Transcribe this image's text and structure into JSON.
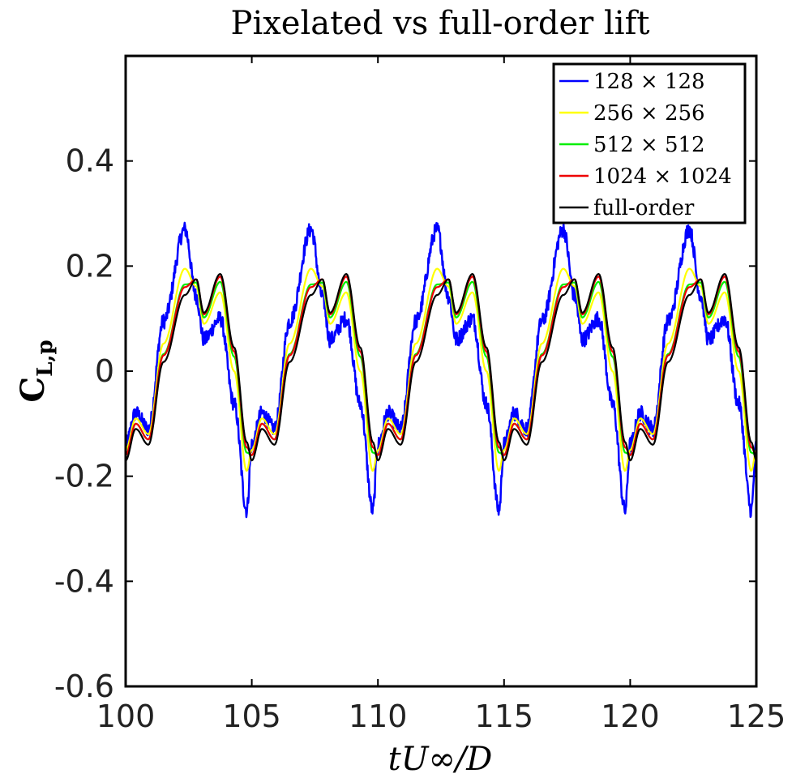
{
  "chart_data": {
    "type": "line",
    "title": "Pixelated vs full-order lift",
    "xlabel": "tU∞/D",
    "ylabel": "C",
    "ylabel_sub": "L,p",
    "xlim": [
      100,
      125
    ],
    "ylim": [
      -0.6,
      0.6
    ],
    "xticks": [
      100,
      105,
      110,
      115,
      120,
      125
    ],
    "xtick_labels": [
      "100",
      "105",
      "110",
      "115",
      "120",
      "125"
    ],
    "yticks": [
      -0.6,
      -0.4,
      -0.2,
      0,
      0.2,
      0.4
    ],
    "ytick_labels": [
      "-0.6",
      "-0.4",
      "-0.2",
      "0",
      "0.2",
      "0.4"
    ],
    "legend_position": "top-right",
    "period": 5,
    "series": [
      {
        "name": "128 × 128",
        "color": "#0000ff",
        "peak": 0.27,
        "trough": -0.265,
        "shoulder_hi": 0.1,
        "shoulder_lo": -0.08,
        "noisy": true
      },
      {
        "name": "256 × 256",
        "color": "#ffff00",
        "peak": 0.195,
        "trough": -0.19,
        "shoulder_hi": 0.15,
        "shoulder_lo": -0.09,
        "noisy": false
      },
      {
        "name": "512 × 512",
        "color": "#00ee00",
        "peak": 0.165,
        "trough": -0.155,
        "shoulder_hi": 0.17,
        "shoulder_lo": -0.1,
        "noisy": false
      },
      {
        "name": "1024 × 1024",
        "color": "#ee0000",
        "peak": 0.16,
        "trough": -0.145,
        "shoulder_hi": 0.18,
        "shoulder_lo": -0.1,
        "noisy": false
      },
      {
        "name": "full-order",
        "color": "#000000",
        "peak": 0.145,
        "trough": -0.135,
        "shoulder_hi": 0.185,
        "shoulder_lo": -0.11,
        "noisy": false
      }
    ]
  }
}
